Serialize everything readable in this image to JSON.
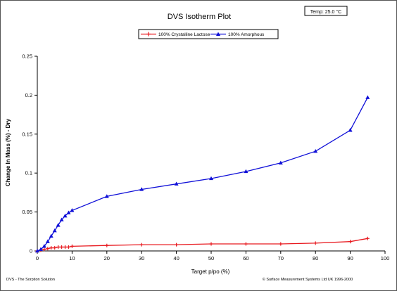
{
  "chart_data": {
    "type": "line",
    "title": "DVS Isotherm Plot",
    "temp_box": "Temp: 25.0 °C",
    "xlabel": "Target p/po (%)",
    "ylabel": "Change In Mass (%) - Dry",
    "xlim": [
      0,
      100
    ],
    "ylim": [
      0,
      0.25
    ],
    "xticks": [
      0,
      10,
      20,
      30,
      40,
      50,
      60,
      70,
      80,
      90,
      100
    ],
    "yticks": [
      0,
      0.05,
      0.1,
      0.15,
      0.2,
      0.25
    ],
    "ytick_labels": [
      "0",
      "0.05",
      "0.1",
      "0.15",
      "0.2",
      "0.25"
    ],
    "grid": false,
    "legend_position": "top-center",
    "footer_left": "DVS - The Sorption Solution",
    "footer_right": "© Surface Measurement Systems Ltd UK 1996-2000",
    "series": [
      {
        "name": "100% Crystalline Lactose",
        "color": "#e8191f",
        "marker": "plus",
        "x": [
          0,
          1,
          2,
          3,
          4,
          5,
          6,
          7,
          8,
          9,
          10,
          20,
          30,
          40,
          50,
          60,
          70,
          80,
          90,
          95
        ],
        "y": [
          0,
          0.001,
          0.002,
          0.003,
          0.004,
          0.004,
          0.005,
          0.005,
          0.005,
          0.005,
          0.006,
          0.007,
          0.008,
          0.008,
          0.009,
          0.009,
          0.009,
          0.01,
          0.012,
          0.016
        ]
      },
      {
        "name": "100% Amorphous",
        "color": "#1010d8",
        "marker": "triangle",
        "x": [
          0,
          1,
          2,
          3,
          4,
          5,
          6,
          7,
          8,
          9,
          10,
          20,
          30,
          40,
          50,
          60,
          70,
          80,
          90,
          95
        ],
        "y": [
          0,
          0.002,
          0.006,
          0.012,
          0.019,
          0.026,
          0.033,
          0.04,
          0.045,
          0.049,
          0.052,
          0.07,
          0.079,
          0.086,
          0.093,
          0.102,
          0.113,
          0.128,
          0.155,
          0.197
        ]
      }
    ]
  }
}
